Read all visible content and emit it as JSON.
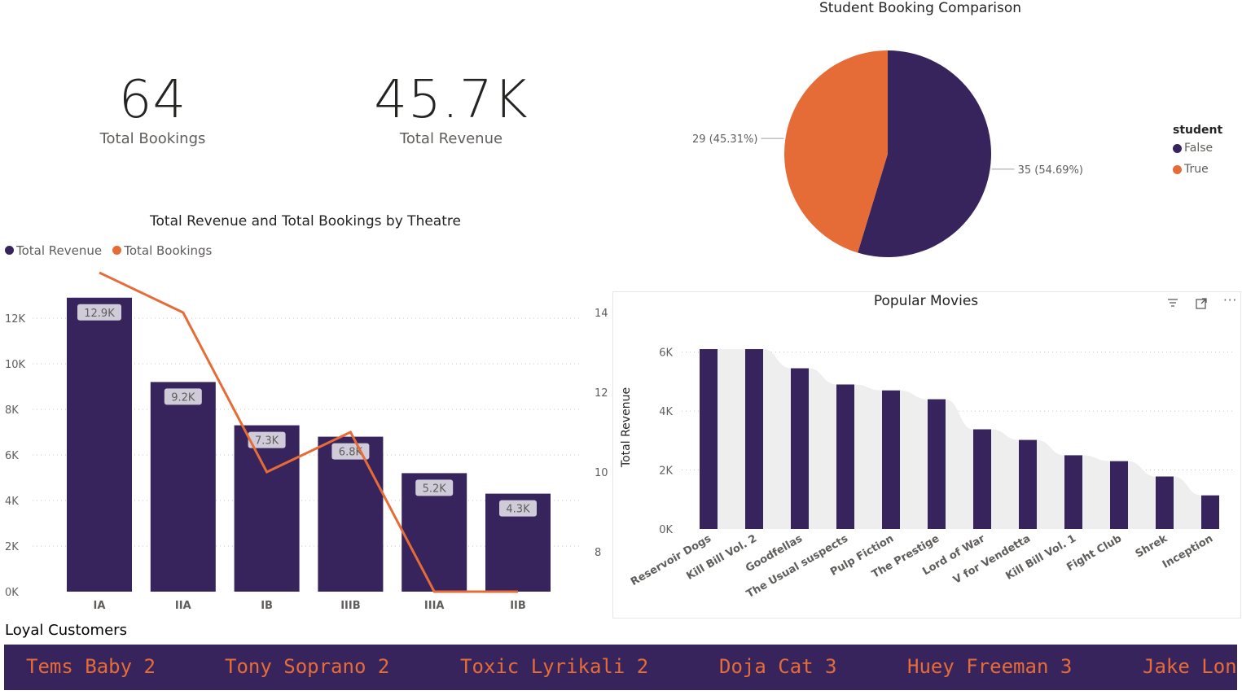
{
  "kpis": [
    {
      "value": "64",
      "label": "Total Bookings"
    },
    {
      "value": "45.7K",
      "label": "Total Revenue"
    }
  ],
  "colors": {
    "primary": "#38245c",
    "accent": "#e66c37",
    "grid": "#c8c6c4",
    "axis": "#605e5c",
    "area": "#eeeeee"
  },
  "theatre_chart": {
    "title": "Total Revenue and Total Bookings by Theatre",
    "legend": [
      "Total Revenue",
      "Total Bookings"
    ]
  },
  "pie_chart": {
    "title": "Student Booking Comparison",
    "legend_title": "student",
    "legend": [
      "False",
      "True"
    ]
  },
  "movies_chart": {
    "title": "Popular Movies",
    "ylabel": "Total Revenue"
  },
  "loyal": {
    "title": "Loyal Customers",
    "items": [
      "Tems Baby 2",
      "Tony Soprano 2",
      "Toxic Lyrikali 2",
      "Doja Cat 3",
      "Huey Freeman 3",
      "Jake Lon"
    ]
  },
  "chart_data": [
    {
      "type": "bar",
      "title": "Total Revenue and Total Bookings by Theatre",
      "categories": [
        "IA",
        "IIA",
        "IB",
        "IIIB",
        "IIIA",
        "IIB"
      ],
      "series": [
        {
          "name": "Total Revenue",
          "type": "bar",
          "values": [
            12900,
            9200,
            7300,
            6800,
            5200,
            4300
          ],
          "labels": [
            "12.9K",
            "9.2K",
            "7.3K",
            "6.8K",
            "5.2K",
            "4.3K"
          ]
        },
        {
          "name": "Total Bookings",
          "type": "line",
          "values": [
            15,
            14,
            10,
            11,
            7,
            7
          ]
        }
      ],
      "ylim": [
        0,
        13000
      ],
      "yticks": [
        "0K",
        "2K",
        "4K",
        "6K",
        "8K",
        "10K",
        "12K"
      ],
      "y2lim": [
        7,
        15
      ],
      "y2ticks": [
        "8",
        "10",
        "12",
        "14"
      ],
      "grid": true,
      "legend_position": "top-left"
    },
    {
      "type": "pie",
      "title": "Student Booking Comparison",
      "categories": [
        "False",
        "True"
      ],
      "values": [
        35,
        29
      ],
      "labels": [
        "35 (54.69%)",
        "29 (45.31%)"
      ],
      "legend_position": "right"
    },
    {
      "type": "bar",
      "title": "Popular Movies",
      "ylabel": "Total Revenue",
      "categories": [
        "Reservoir Dogs",
        "Kill Bill Vol. 2",
        "Goodfellas",
        "The Usual suspects",
        "Pulp Fiction",
        "The Prestige",
        "Lord of War",
        "V for Vendetta",
        "Kill Bill Vol. 1",
        "Fight Club",
        "Shrek",
        "Inception"
      ],
      "values": [
        6100,
        6100,
        5450,
        4900,
        4700,
        4400,
        3380,
        3020,
        2500,
        2300,
        1780,
        1140
      ],
      "ylim": [
        0,
        6500
      ],
      "yticks": [
        "0K",
        "2K",
        "4K",
        "6K"
      ],
      "grid": true
    }
  ]
}
